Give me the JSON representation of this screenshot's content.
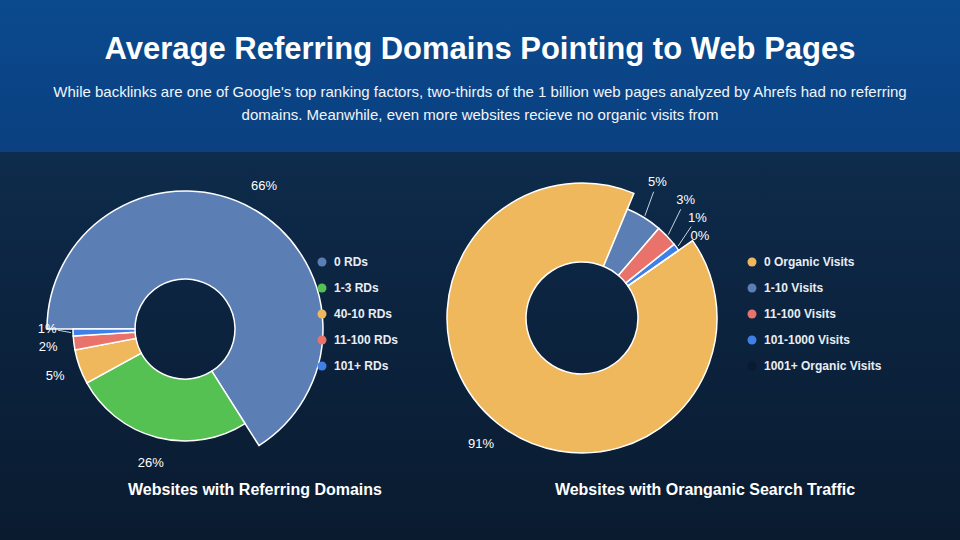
{
  "header": {
    "title": "Average Referring Domains Pointing to Web Pages",
    "subtitle": "While backlinks are one of Google's top ranking factors, two-thirds of the 1 billion web pages analyzed by Ahrefs had no referring domains. Meanwhile, even more websites recieve no organic visits from"
  },
  "chart_data": [
    {
      "type": "pie",
      "title": "Websites with Referring Domains",
      "categories": [
        "0 RDs",
        "1-3 RDs",
        "40-10 RDs",
        "11-100 RDs",
        "101+ RDs"
      ],
      "values": [
        66,
        26,
        5,
        2,
        1
      ],
      "value_labels": [
        "66%",
        "26%",
        "5%",
        "2%",
        "1%"
      ],
      "colors": [
        "#5b7fb5",
        "#55c152",
        "#efb85c",
        "#e9736b",
        "#3f7fe8"
      ],
      "data_labels": true,
      "legend": "right"
    },
    {
      "type": "pie",
      "title": "Websites with Oranganic Search Traffic",
      "categories": [
        "0 Organic Visits",
        "1-10 Visits",
        "11-100 Visits",
        "101-1000 Visits",
        "1001+ Organic Visits"
      ],
      "values": [
        91,
        5,
        3,
        1,
        0
      ],
      "value_labels": [
        "91%",
        "5%",
        "3%",
        "1%",
        "0%"
      ],
      "colors": [
        "#efb85c",
        "#5b7fb5",
        "#e9736b",
        "#3f7fe8",
        "#0a1a30"
      ],
      "data_labels": true,
      "legend": "right"
    }
  ]
}
